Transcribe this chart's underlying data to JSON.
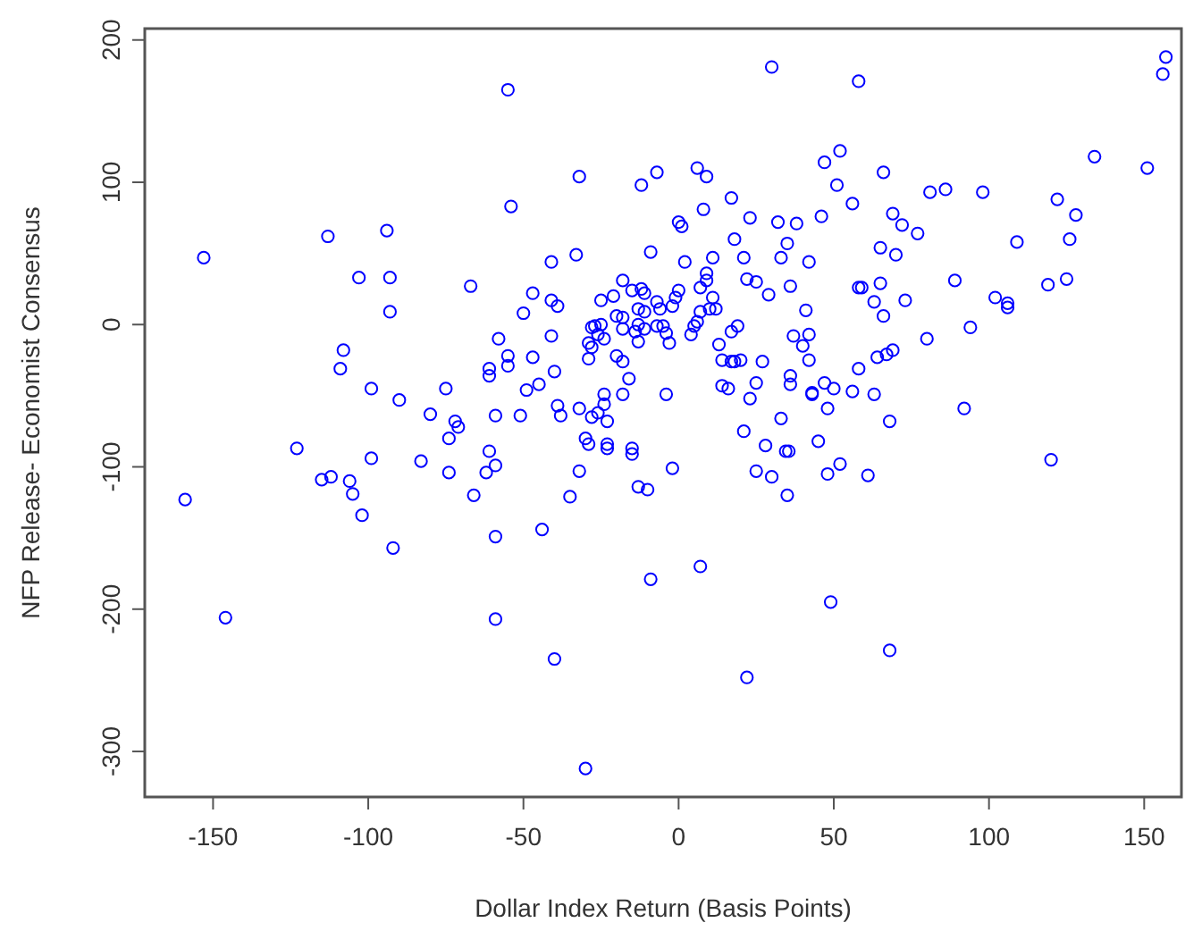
{
  "chart_data": {
    "type": "scatter",
    "xlabel": "Dollar Index Return (Basis Points)",
    "ylabel": "NFP Release- Economist Consensus",
    "xlim": [
      -172,
      162
    ],
    "ylim": [
      -332,
      208
    ],
    "xticks": [
      -150,
      -100,
      -50,
      0,
      50,
      100,
      150
    ],
    "yticks": [
      -300,
      -200,
      -100,
      0,
      100,
      200
    ],
    "marker": "circle",
    "series": [
      {
        "color": "#0000ff",
        "x": [
          -55,
          -54,
          -113,
          -94,
          -153,
          -103,
          -93,
          -67,
          -47,
          -50,
          -93,
          -58,
          -108,
          -109,
          -55,
          -55,
          -47,
          -61,
          -61,
          -99,
          -75,
          -90,
          -49,
          -45,
          -80,
          -72,
          -71,
          -59,
          -51,
          -123,
          -74,
          -99,
          -83,
          -61,
          -59,
          -62,
          -74,
          -115,
          -112,
          -106,
          -105,
          -159,
          -66,
          -102,
          -92,
          -59,
          -146,
          -59,
          -44,
          30,
          58,
          -32,
          -12,
          -7,
          6,
          9,
          47,
          52,
          51,
          56,
          17,
          8,
          0,
          1,
          23,
          32,
          38,
          46,
          18,
          35,
          -9,
          -33,
          -41,
          2,
          11,
          21,
          33,
          42,
          9,
          9,
          22,
          25,
          36,
          58,
          -18,
          -41,
          -39,
          -25,
          -21,
          -15,
          -12,
          -11,
          -7,
          -13,
          -11,
          -6,
          0,
          -1,
          -2,
          7,
          11,
          10,
          12,
          7,
          29,
          41,
          -20,
          -18,
          -14,
          -13,
          -11,
          -28,
          -27,
          -25,
          -26,
          -24,
          -29,
          -28,
          -29,
          -41,
          -40,
          -18,
          -13,
          -7,
          -5,
          -4,
          -3,
          4,
          5,
          6,
          17,
          19,
          13,
          -20,
          -18,
          -16,
          -24,
          -18,
          -4,
          14,
          17,
          18,
          20,
          27,
          14,
          16,
          25,
          23,
          37,
          40,
          42,
          42,
          36,
          36,
          43,
          47,
          50,
          56,
          58,
          -39,
          -38,
          -32,
          -28,
          -26,
          -24,
          -23,
          -30,
          -29,
          -23,
          -23,
          -15,
          -15,
          -32,
          -35,
          -13,
          -10,
          -2,
          21,
          28,
          25,
          30,
          33,
          34.5,
          35.5,
          35,
          43,
          48,
          45,
          48,
          52,
          -9,
          7,
          49,
          -40,
          22,
          -30,
          157,
          156,
          134,
          151,
          66,
          81,
          86,
          98,
          122,
          128,
          69,
          72,
          77,
          109,
          126,
          65,
          70,
          89,
          119,
          125,
          59,
          65,
          63,
          66,
          73,
          102,
          106,
          106,
          94,
          80,
          64,
          67,
          69,
          63,
          92,
          68,
          61,
          120,
          68
        ],
        "values": [
          165,
          83,
          62,
          66,
          47,
          33,
          33,
          27,
          22,
          8,
          9,
          -10,
          -18,
          -31,
          -22,
          -29,
          -23,
          -31,
          -36,
          -45,
          -45,
          -53,
          -46,
          -42,
          -63,
          -68,
          -72,
          -64,
          -64,
          -87,
          -80,
          -94,
          -96,
          -89,
          -99,
          -104,
          -104,
          -109,
          -107,
          -110,
          -119,
          -123,
          -120,
          -134,
          -157,
          -149,
          -206,
          -207,
          -144,
          181,
          171,
          104,
          98,
          107,
          110,
          104,
          114,
          122,
          98,
          85,
          89,
          81,
          72,
          69,
          75,
          72,
          71,
          76,
          60,
          57,
          51,
          49,
          44,
          44,
          47,
          47,
          47,
          44,
          36,
          31,
          32,
          30,
          27,
          26,
          31,
          17,
          13,
          17,
          20,
          24,
          25,
          22,
          16,
          11,
          9,
          11,
          24,
          19,
          13,
          26,
          19,
          11,
          11,
          9,
          21,
          10,
          6,
          5,
          -5,
          0,
          -3,
          -2,
          -1,
          0,
          -7,
          -10,
          -13,
          -16,
          -24,
          -8,
          -33,
          -3,
          -12,
          -1,
          -1,
          -6,
          -13,
          -7,
          -1,
          2,
          -5,
          -1,
          -14,
          -22,
          -26,
          -38,
          -49,
          -49,
          -49,
          -25,
          -26,
          -26,
          -25,
          -26,
          -43,
          -45,
          -41,
          -52,
          -8,
          -15,
          -7,
          -25,
          -36,
          -42,
          -48,
          -41,
          -45,
          -47,
          -31,
          -57,
          -64,
          -59,
          -65,
          -62,
          -56,
          -68,
          -80,
          -84,
          -84,
          -87,
          -87,
          -91,
          -103,
          -121,
          -114,
          -116,
          -101,
          -75,
          -85,
          -103,
          -107,
          -66,
          -89,
          -89,
          -120,
          -49,
          -59,
          -82,
          -105,
          -98,
          -179,
          -170,
          -195,
          -235,
          -248,
          -312,
          188,
          176,
          118,
          110,
          107,
          93,
          95,
          93,
          88,
          77,
          78,
          70,
          64,
          58,
          60,
          54,
          49,
          31,
          28,
          32,
          26,
          29,
          16,
          6,
          17,
          19,
          15,
          12,
          -2,
          -10,
          -23,
          -21,
          -18,
          -49,
          -59,
          -68,
          -106,
          -95,
          -229
        ]
      }
    ]
  }
}
